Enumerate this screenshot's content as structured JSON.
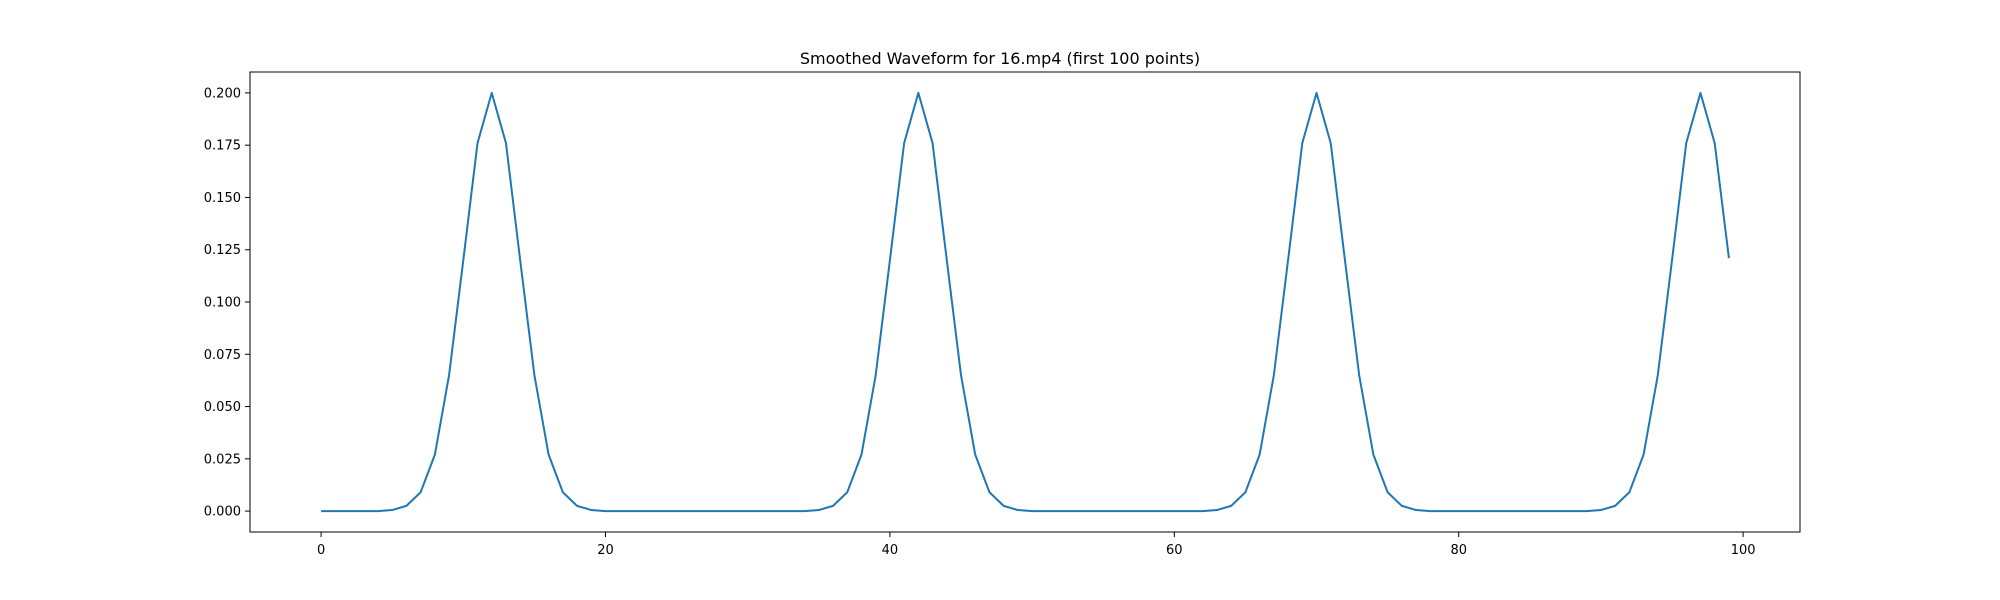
{
  "chart_data": {
    "type": "line",
    "title": "Smoothed Waveform for 16.mp4 (first 100 points)",
    "xlabel": "",
    "ylabel": "",
    "xlim": [
      -5,
      104
    ],
    "ylim": [
      -0.01,
      0.21
    ],
    "x_ticks": [
      0,
      20,
      40,
      60,
      80,
      100
    ],
    "y_ticks": [
      0.0,
      0.025,
      0.05,
      0.075,
      0.1,
      0.125,
      0.15,
      0.175,
      0.2
    ],
    "x_tick_labels": [
      "0",
      "20",
      "40",
      "60",
      "80",
      "100"
    ],
    "y_tick_labels": [
      "0.000",
      "0.025",
      "0.050",
      "0.075",
      "0.100",
      "0.125",
      "0.150",
      "0.175",
      "0.200"
    ],
    "grid": false,
    "line_color": "#1f77b4",
    "series": [
      {
        "x": [
          0,
          1,
          2,
          3,
          4,
          5,
          6,
          7,
          8,
          9,
          10,
          11,
          12,
          13,
          14,
          15,
          16,
          17,
          18,
          19,
          20,
          21,
          22,
          23,
          24,
          25,
          26,
          27,
          28,
          29,
          30,
          31,
          32,
          33,
          34,
          35,
          36,
          37,
          38,
          39,
          40,
          41,
          42,
          43,
          44,
          45,
          46,
          47,
          48,
          49,
          50,
          51,
          52,
          53,
          54,
          55,
          56,
          57,
          58,
          59,
          60,
          61,
          62,
          63,
          64,
          65,
          66,
          67,
          68,
          69,
          70,
          71,
          72,
          73,
          74,
          75,
          76,
          77,
          78,
          79,
          80,
          81,
          82,
          83,
          84,
          85,
          86,
          87,
          88,
          89,
          90,
          91,
          92,
          93,
          94,
          95,
          96,
          97,
          98,
          99
        ],
        "values": [
          0.0,
          0.0,
          0.0,
          0.0,
          0.0,
          0.0005,
          0.0025,
          0.009,
          0.027,
          0.065,
          0.12,
          0.176,
          0.2,
          0.176,
          0.12,
          0.065,
          0.027,
          0.009,
          0.0025,
          0.0005,
          0.0,
          0.0,
          0.0,
          0.0,
          0.0,
          0.0,
          0.0,
          0.0,
          0.0,
          0.0,
          0.0,
          0.0,
          0.0,
          0.0,
          0.0,
          0.0005,
          0.0025,
          0.009,
          0.027,
          0.065,
          0.12,
          0.176,
          0.2,
          0.176,
          0.12,
          0.065,
          0.027,
          0.009,
          0.0025,
          0.0005,
          0.0,
          0.0,
          0.0,
          0.0,
          0.0,
          0.0,
          0.0,
          0.0,
          0.0,
          0.0,
          0.0,
          0.0,
          0.0,
          0.0005,
          0.0025,
          0.009,
          0.027,
          0.065,
          0.12,
          0.176,
          0.2,
          0.176,
          0.12,
          0.065,
          0.027,
          0.009,
          0.0025,
          0.0005,
          0.0,
          0.0,
          0.0,
          0.0,
          0.0,
          0.0,
          0.0,
          0.0,
          0.0,
          0.0,
          0.0,
          0.0,
          0.0005,
          0.0025,
          0.009,
          0.027,
          0.065,
          0.12,
          0.176,
          0.2,
          0.176,
          0.121
        ]
      }
    ]
  }
}
